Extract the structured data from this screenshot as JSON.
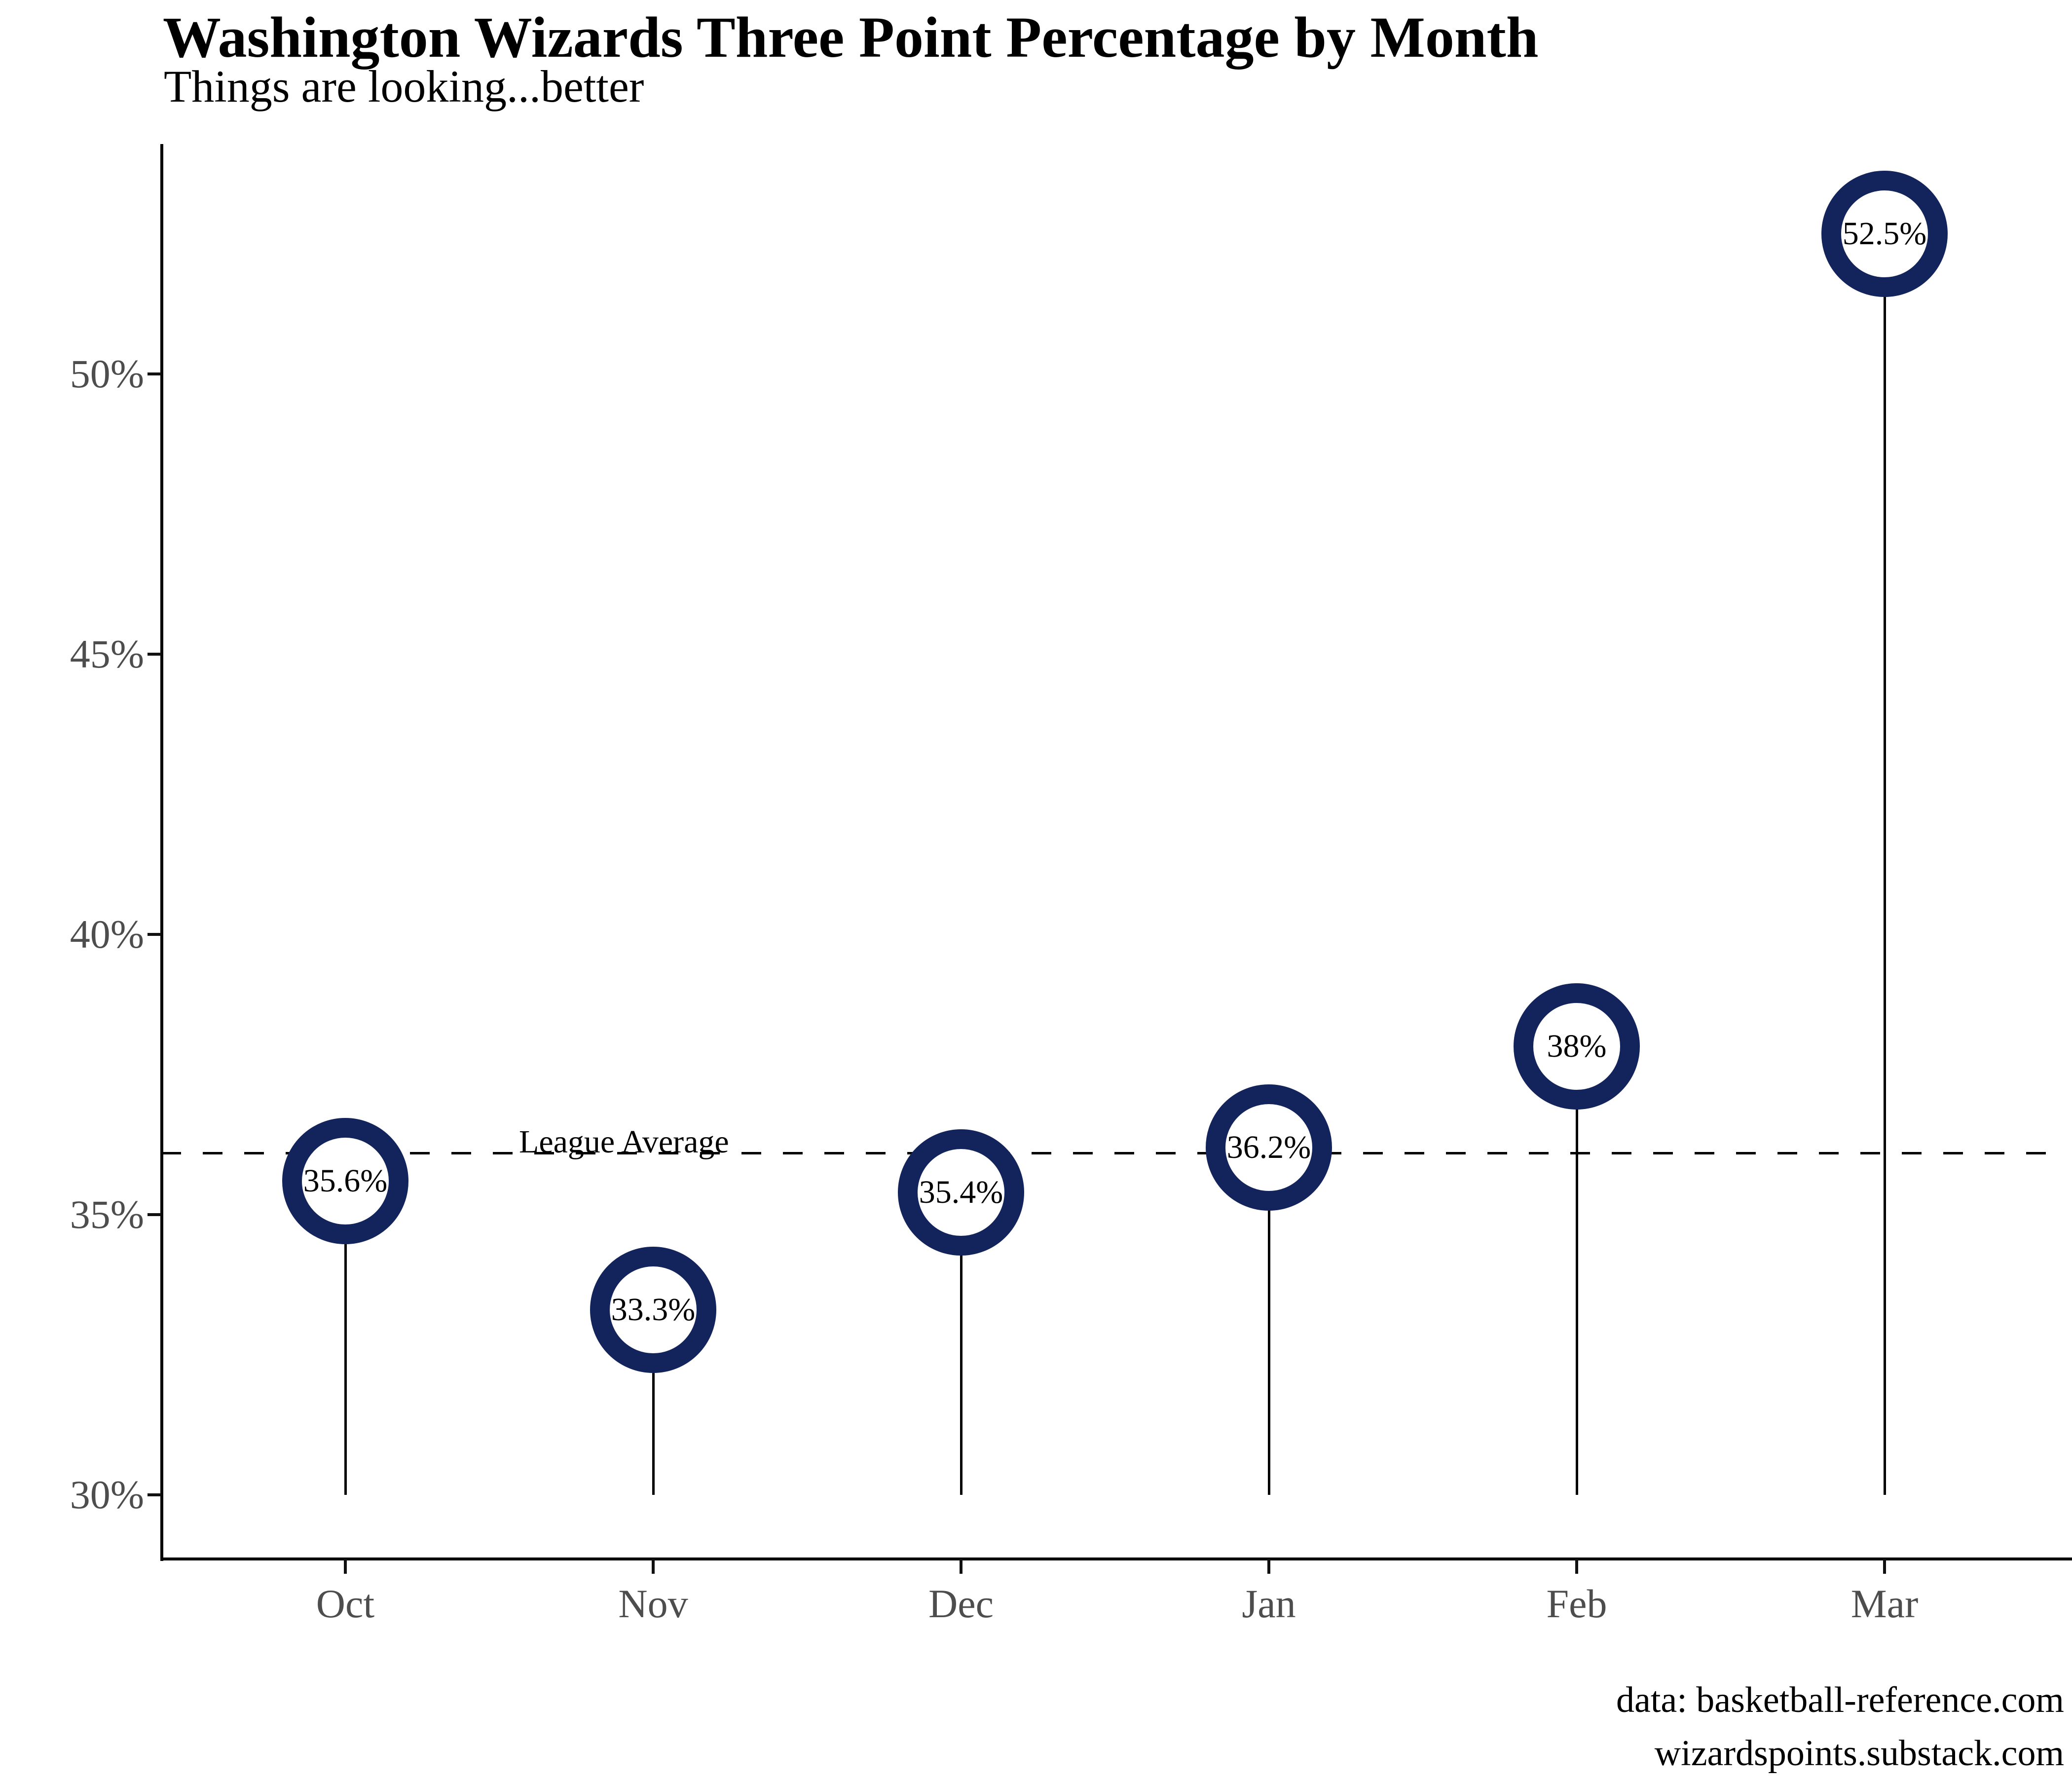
{
  "title": "Washington Wizards Three Point Percentage by Month",
  "subtitle": "Things are looking...better",
  "footer": {
    "line1": "data: basketball-reference.com",
    "line2": "wizardspoints.substack.com"
  },
  "chart_data": {
    "type": "scatter",
    "variant": "lollipop",
    "title": "Washington Wizards Three Point Percentage by Month",
    "subtitle": "Things are looking...better",
    "categories": [
      "Oct",
      "Nov",
      "Dec",
      "Jan",
      "Feb",
      "Mar"
    ],
    "values": [
      35.6,
      33.3,
      35.4,
      36.2,
      38,
      52.5
    ],
    "point_labels": [
      "35.6%",
      "33.3%",
      "35.4%",
      "36.2%",
      "38%",
      "52.5%"
    ],
    "y_ticks": [
      "30%",
      "35%",
      "40%",
      "45%",
      "50%"
    ],
    "y_tick_values": [
      30,
      35,
      40,
      45,
      50
    ],
    "ylim": [
      28.9,
      54.1
    ],
    "stem_base_value": 30,
    "reference_line": {
      "label": "League Average",
      "value": 36.1,
      "style": "dashed"
    },
    "grid": false,
    "legend": "none",
    "colors": {
      "ring": "#13245c",
      "stem": "#000000",
      "axis_line": "#000000",
      "axis_text": "#4d4d4d",
      "reference_line": "#000000"
    }
  }
}
